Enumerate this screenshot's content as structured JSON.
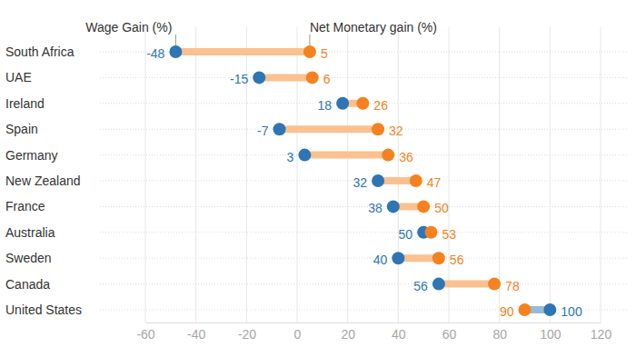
{
  "chart_data": {
    "type": "dumbbell",
    "orientation": "horizontal",
    "categories": [
      "South Africa",
      "UAE",
      "Ireland",
      "Spain",
      "Germany",
      "New Zealand",
      "France",
      "Australia",
      "Sweden",
      "Canada",
      "United States"
    ],
    "series": [
      {
        "name": "Wage Gain (%)",
        "color": "#2e75b6",
        "values": [
          -48,
          -15,
          18,
          -7,
          3,
          32,
          38,
          50,
          40,
          56,
          100
        ]
      },
      {
        "name": "Net Monetary gain (%)",
        "color": "#f5821f",
        "values": [
          5,
          6,
          26,
          32,
          36,
          47,
          50,
          53,
          56,
          78,
          90
        ]
      }
    ],
    "xlim": [
      -60,
      120
    ],
    "xticks": [
      -60,
      -40,
      -20,
      0,
      20,
      40,
      60,
      80,
      100,
      120
    ],
    "grid": true,
    "data_labels": true
  }
}
